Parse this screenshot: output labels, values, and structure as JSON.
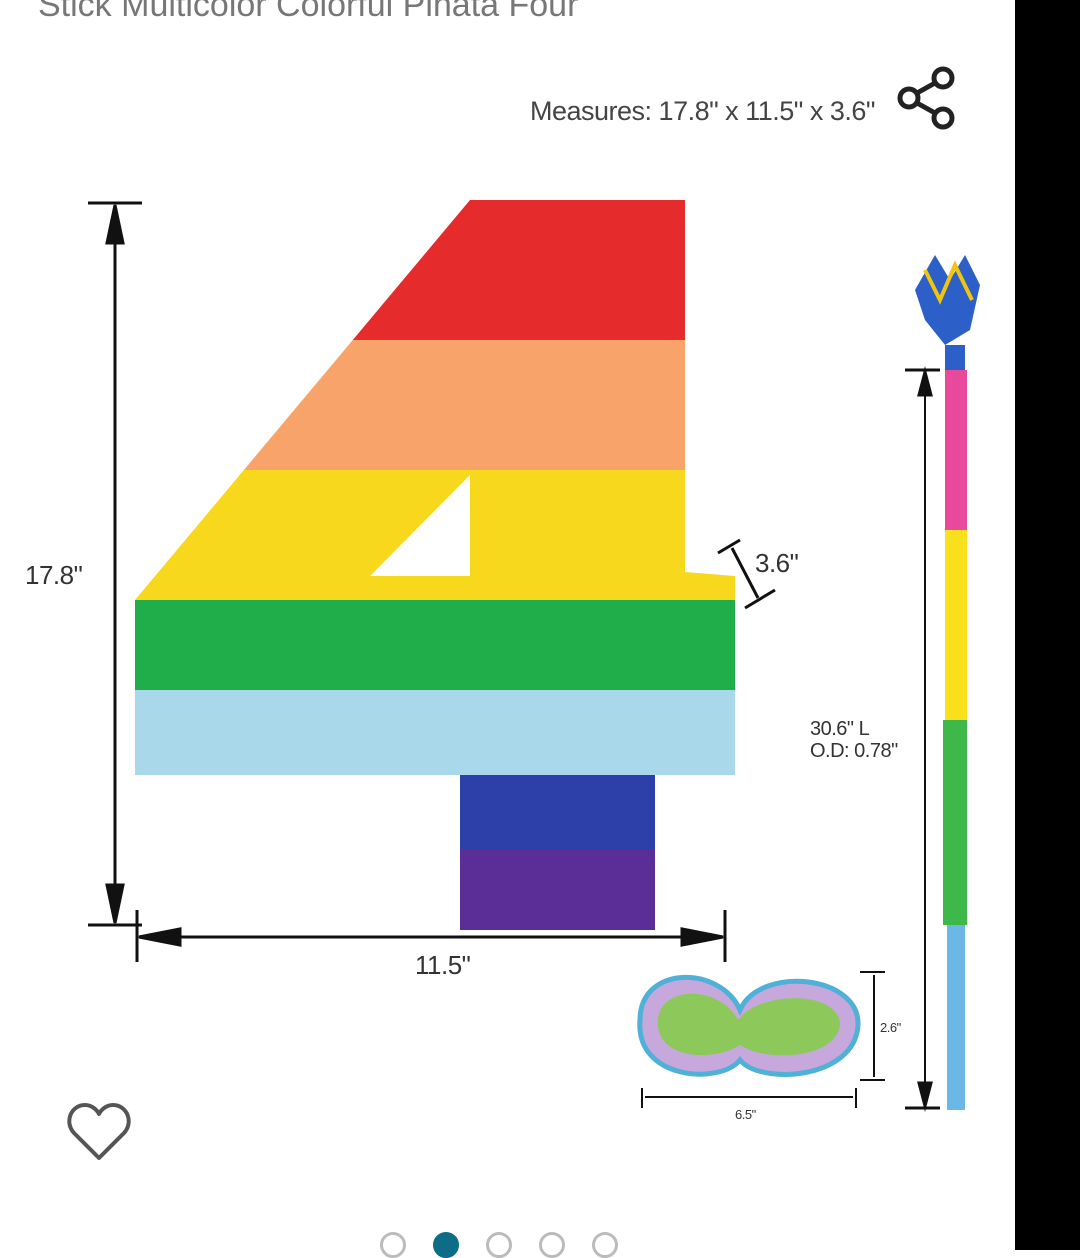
{
  "product": {
    "title": "Stick Multicolor Colorful Piñata Four",
    "measures": "Measures: 17.8\" x 11.5\" x 3.6\""
  },
  "image": {
    "height_label": "17.8\"",
    "width_label": "11.5\"",
    "depth_label": "3.6\"",
    "stick_length_label": "30.6\" L",
    "stick_od_label": "O.D: 0.78\"",
    "blindfold_height_label": "2.6\"",
    "blindfold_width_label": "6.5\""
  },
  "carousel": {
    "count": 5,
    "active_index": 1
  },
  "colors": {
    "accent": "#0e6d86"
  },
  "icons": {
    "share": "share-icon",
    "favorite": "heart-icon"
  }
}
